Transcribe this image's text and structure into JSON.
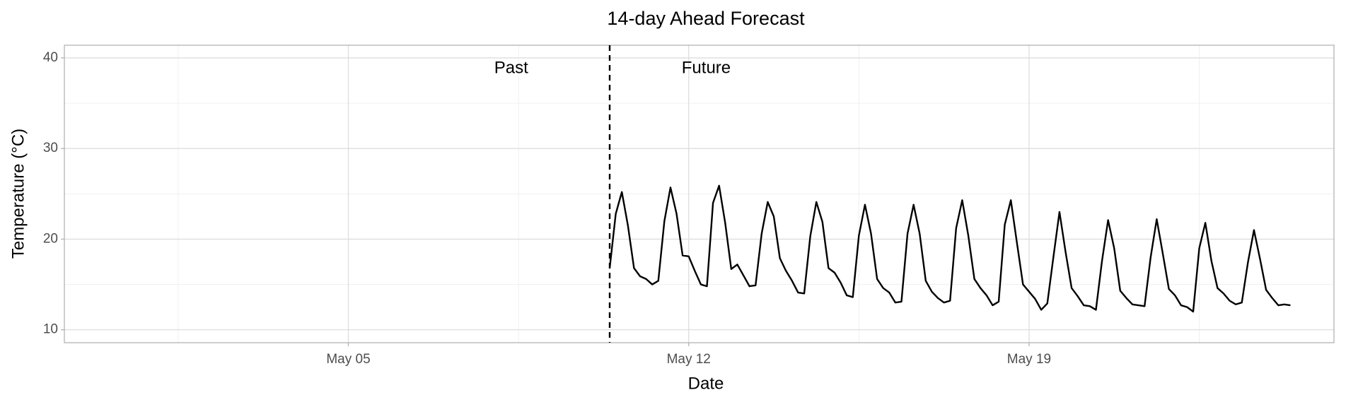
{
  "chart_data": {
    "type": "line",
    "title": "14-day Ahead Forecast",
    "x_label": "Date",
    "y_label": "Temperature (°C)",
    "x": [
      10.375,
      10.5,
      10.625,
      10.75,
      10.875,
      11,
      11.125,
      11.25,
      11.375,
      11.5,
      11.625,
      11.75,
      11.875,
      12,
      12.125,
      12.25,
      12.375,
      12.5,
      12.625,
      12.75,
      12.875,
      13,
      13.125,
      13.25,
      13.375,
      13.5,
      13.625,
      13.75,
      13.875,
      14,
      14.125,
      14.25,
      14.375,
      14.5,
      14.625,
      14.75,
      14.875,
      15,
      15.125,
      15.25,
      15.375,
      15.5,
      15.625,
      15.75,
      15.875,
      16,
      16.125,
      16.25,
      16.375,
      16.5,
      16.625,
      16.75,
      16.875,
      17,
      17.125,
      17.25,
      17.375,
      17.5,
      17.625,
      17.75,
      17.875,
      18,
      18.125,
      18.25,
      18.375,
      18.5,
      18.625,
      18.75,
      18.875,
      19,
      19.125,
      19.25,
      19.375,
      19.5,
      19.625,
      19.75,
      19.875,
      20,
      20.125,
      20.25,
      20.375,
      20.5,
      20.625,
      20.75,
      20.875,
      21,
      21.125,
      21.25,
      21.375,
      21.5,
      21.625,
      21.75,
      21.875,
      22,
      22.125,
      22.25,
      22.375,
      22.5,
      22.625,
      22.75,
      22.875,
      23,
      23.125,
      23.25,
      23.375,
      23.5,
      23.625,
      23.75,
      23.875,
      24,
      24.125,
      24.25,
      24.375
    ],
    "series": [
      {
        "color": "#000000",
        "values": [
          16.8,
          22.8,
          25.2,
          21.5,
          16.8,
          15.9,
          15.6,
          15.0,
          15.4,
          22.0,
          25.7,
          22.8,
          18.2,
          18.1,
          16.5,
          15.0,
          14.8,
          24.0,
          25.9,
          21.8,
          16.7,
          17.2,
          16.0,
          14.8,
          14.9,
          20.6,
          24.1,
          22.5,
          17.9,
          16.5,
          15.4,
          14.1,
          14.0,
          20.3,
          24.1,
          21.9,
          16.8,
          16.3,
          15.2,
          13.8,
          13.6,
          20.4,
          23.8,
          20.6,
          15.6,
          14.6,
          14.1,
          13.0,
          13.1,
          20.6,
          23.8,
          20.6,
          15.4,
          14.2,
          13.5,
          13.0,
          13.2,
          21.2,
          24.3,
          20.4,
          15.6,
          14.6,
          13.8,
          12.7,
          13.1,
          21.6,
          24.3,
          19.6,
          15.0,
          14.2,
          13.4,
          12.2,
          12.9,
          18.0,
          23.0,
          18.6,
          14.6,
          13.7,
          12.7,
          12.6,
          12.2,
          17.6,
          22.1,
          19.0,
          14.3,
          13.5,
          12.8,
          12.7,
          12.6,
          18.0,
          22.2,
          18.4,
          14.5,
          13.8,
          12.7,
          12.5,
          12.0,
          19.0,
          21.8,
          17.6,
          14.6,
          14.0,
          13.2,
          12.8,
          13.0,
          17.4,
          21.0,
          17.8,
          14.4,
          13.5,
          12.7,
          12.8,
          12.7
        ]
      }
    ],
    "xlim": [
      -0.84,
      25.27
    ],
    "ylim": [
      8.57,
      41.4
    ],
    "xticks": [
      {
        "value": 5,
        "label": "May 05"
      },
      {
        "value": 12,
        "label": "May 12"
      },
      {
        "value": 19,
        "label": "May 19"
      }
    ],
    "x_minor_ticks": [
      1.5,
      8.5,
      15.5,
      22.5
    ],
    "yticks": [
      10,
      20,
      30,
      40
    ],
    "y_minor_ticks": [
      15,
      25,
      35
    ],
    "grid": true,
    "vline": 10.375,
    "annotations": [
      {
        "text": "Past",
        "x": 8.35,
        "y": 38.8
      },
      {
        "text": "Future",
        "x": 12.36,
        "y": 38.8
      }
    ]
  }
}
